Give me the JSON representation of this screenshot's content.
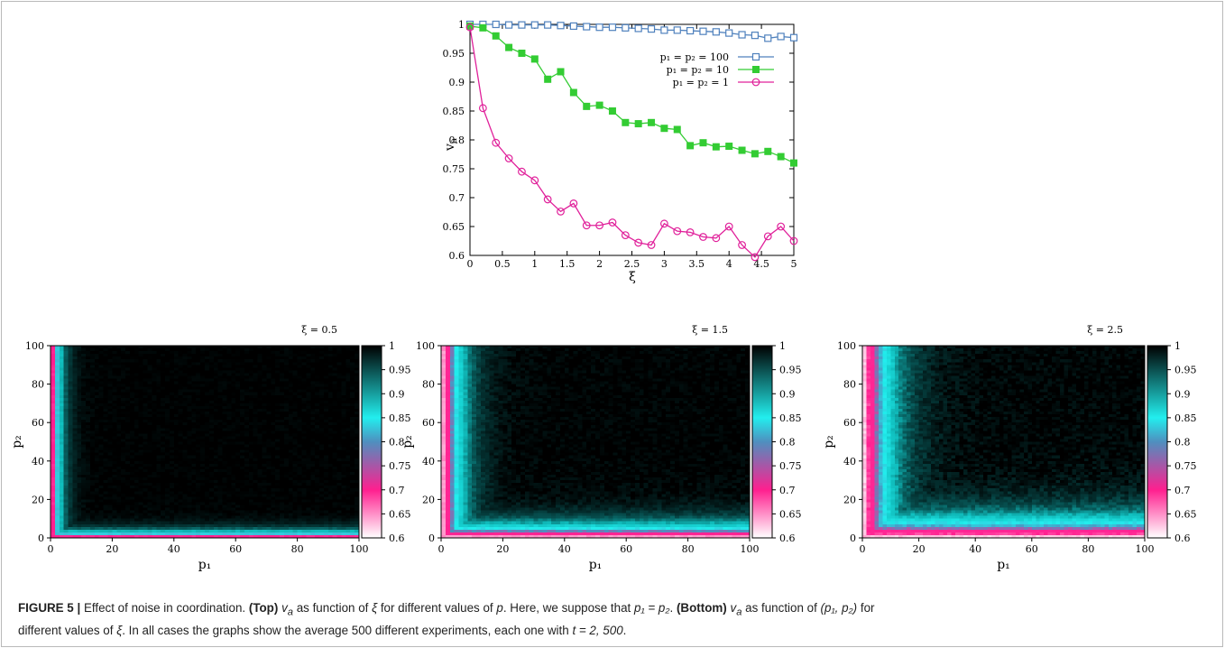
{
  "top_chart": {
    "type": "line",
    "xlabel": "ξ",
    "ylabel": "v_a",
    "xlim": [
      0,
      5
    ],
    "ylim": [
      0.6,
      1
    ],
    "xticks": [
      "0",
      "0.5",
      "1",
      "1.5",
      "2",
      "2.5",
      "3",
      "3.5",
      "4",
      "4.5",
      "5"
    ],
    "yticks": [
      "0.6",
      "0.65",
      "0.7",
      "0.75",
      "0.8",
      "0.85",
      "0.9",
      "0.95",
      "1"
    ],
    "legend_position": "top-right",
    "x": [
      0,
      0.2,
      0.4,
      0.6,
      0.8,
      1.0,
      1.2,
      1.4,
      1.6,
      1.8,
      2.0,
      2.2,
      2.4,
      2.6,
      2.8,
      3.0,
      3.2,
      3.4,
      3.6,
      3.8,
      4.0,
      4.2,
      4.4,
      4.6,
      4.8,
      5.0
    ],
    "series": [
      {
        "name": "p₁ = p₂ = 100",
        "color": "#4f81bd",
        "marker": "open-square",
        "values": [
          1.0,
          1.0,
          1.0,
          0.999,
          0.999,
          0.999,
          0.999,
          0.998,
          0.997,
          0.996,
          0.995,
          0.995,
          0.994,
          0.993,
          0.992,
          0.99,
          0.99,
          0.989,
          0.988,
          0.987,
          0.985,
          0.982,
          0.981,
          0.976,
          0.979,
          0.977
        ]
      },
      {
        "name": "p₁ = p₂ = 10",
        "color": "#33cc33",
        "marker": "filled-square",
        "values": [
          0.997,
          0.994,
          0.98,
          0.96,
          0.95,
          0.94,
          0.905,
          0.918,
          0.882,
          0.858,
          0.86,
          0.85,
          0.83,
          0.828,
          0.83,
          0.82,
          0.818,
          0.79,
          0.795,
          0.788,
          0.789,
          0.782,
          0.776,
          0.78,
          0.771,
          0.76
        ]
      },
      {
        "name": "p₁ = p₂ = 1",
        "color": "#e0209a",
        "marker": "open-circle",
        "values": [
          0.995,
          0.855,
          0.795,
          0.768,
          0.745,
          0.73,
          0.697,
          0.676,
          0.69,
          0.652,
          0.652,
          0.657,
          0.635,
          0.622,
          0.618,
          0.655,
          0.642,
          0.64,
          0.632,
          0.63,
          0.65,
          0.618,
          0.597,
          0.633,
          0.65,
          0.625
        ]
      }
    ]
  },
  "heatmaps": [
    {
      "title": "ξ = 0.5",
      "xi": 0.5
    },
    {
      "title": "ξ = 1.5",
      "xi": 1.5
    },
    {
      "title": "ξ = 2.5",
      "xi": 2.5
    }
  ],
  "heatmap_common": {
    "type": "heatmap",
    "xlabel": "p₁",
    "ylabel": "p₂",
    "xlim": [
      0,
      100
    ],
    "ylim": [
      0,
      100
    ],
    "xticks": [
      "0",
      "20",
      "40",
      "60",
      "80",
      "100"
    ],
    "yticks": [
      "0",
      "20",
      "40",
      "60",
      "80",
      "100"
    ],
    "colorbar_ticks": [
      "0.6",
      "0.65",
      "0.7",
      "0.75",
      "0.8",
      "0.85",
      "0.9",
      "0.95",
      "1"
    ],
    "colorbar_range": [
      0.6,
      1
    ],
    "colors": {
      "low": "#ffffff",
      "pink": "#ff1f8f",
      "blue": "#4f8fbf",
      "cyan": "#22eeee",
      "high": "#000000"
    }
  },
  "caption": {
    "label": "FIGURE 5 |",
    "intro": "Effect of noise in coordination.",
    "top_label": "(Top)",
    "top_var": "v",
    "top_sub": "a",
    "top_text_1": "as function of",
    "top_xi": "ξ",
    "top_text_2": "for different values of",
    "top_p": "p",
    "top_text_3": ". Here, we suppose that",
    "top_eq": "p₁ = p₂",
    "top_end": ".",
    "bottom_label": "(Bottom)",
    "bottom_var": "v",
    "bottom_sub": "a",
    "bottom_text_1": "as function of",
    "bottom_pair": "(p₁, p₂)",
    "bottom_text_2": "for",
    "bottom_text_3": "different values of",
    "bottom_xi": "ξ",
    "bottom_text_4": ". In all cases the graphs show the average 500 different experiments, each one with",
    "bottom_t": "t = 2, 500",
    "bottom_end": "."
  }
}
